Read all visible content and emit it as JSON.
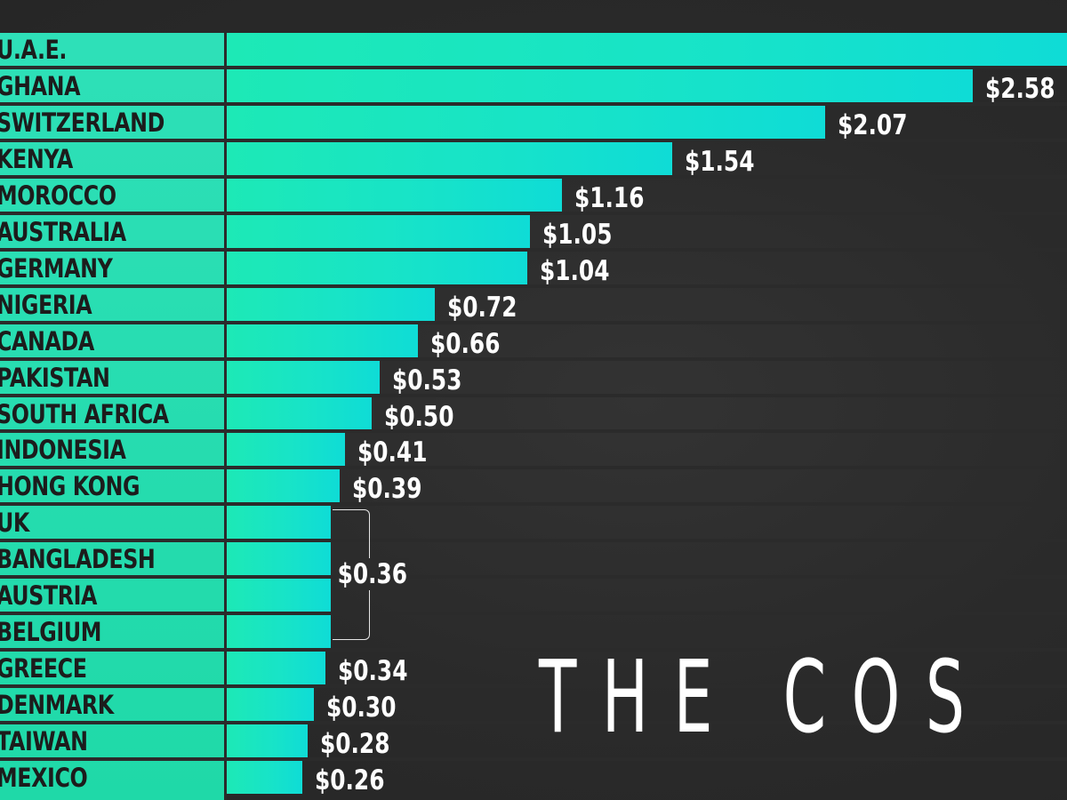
{
  "chart_data": {
    "type": "bar",
    "orientation": "horizontal",
    "title": "THE COS",
    "categories": [
      "U.A.E.",
      "GHANA",
      "SWITZERLAND",
      "KENYA",
      "MOROCCO",
      "AUSTRALIA",
      "GERMANY",
      "NIGERIA",
      "CANADA",
      "PAKISTAN",
      "SOUTH AFRICA",
      "INDONESIA",
      "HONG KONG",
      "UK",
      "BANGLADESH",
      "AUSTRIA",
      "BELGIUM",
      "GREECE",
      "DENMARK",
      "TAIWAN",
      "MEXICO"
    ],
    "values": [
      null,
      2.58,
      2.07,
      1.54,
      1.16,
      1.05,
      1.04,
      0.72,
      0.66,
      0.53,
      0.5,
      0.41,
      0.39,
      0.36,
      0.36,
      0.36,
      0.36,
      0.34,
      0.3,
      0.28,
      0.26
    ],
    "value_labels": [
      "",
      "$2.58",
      "$2.07",
      "$1.54",
      "$1.16",
      "$1.05",
      "$1.04",
      "$0.72",
      "$0.66",
      "$0.53",
      "$0.50",
      "$0.41",
      "$0.39",
      "",
      "",
      "",
      "",
      "$0.34",
      "$0.30",
      "$0.28",
      "$0.26"
    ],
    "grouped_value_label": "$0.36",
    "grouped_categories": [
      "UK",
      "BANGLADESH",
      "AUSTRIA",
      "BELGIUM"
    ],
    "xlim": [
      0,
      3.0
    ],
    "grid": false,
    "colors": {
      "background": "#2b2b2b",
      "bar": "#1de9b6",
      "bar_end": "#0fdcd6",
      "label_text": "#1c1c1c",
      "value_text": "#ffffff"
    }
  }
}
